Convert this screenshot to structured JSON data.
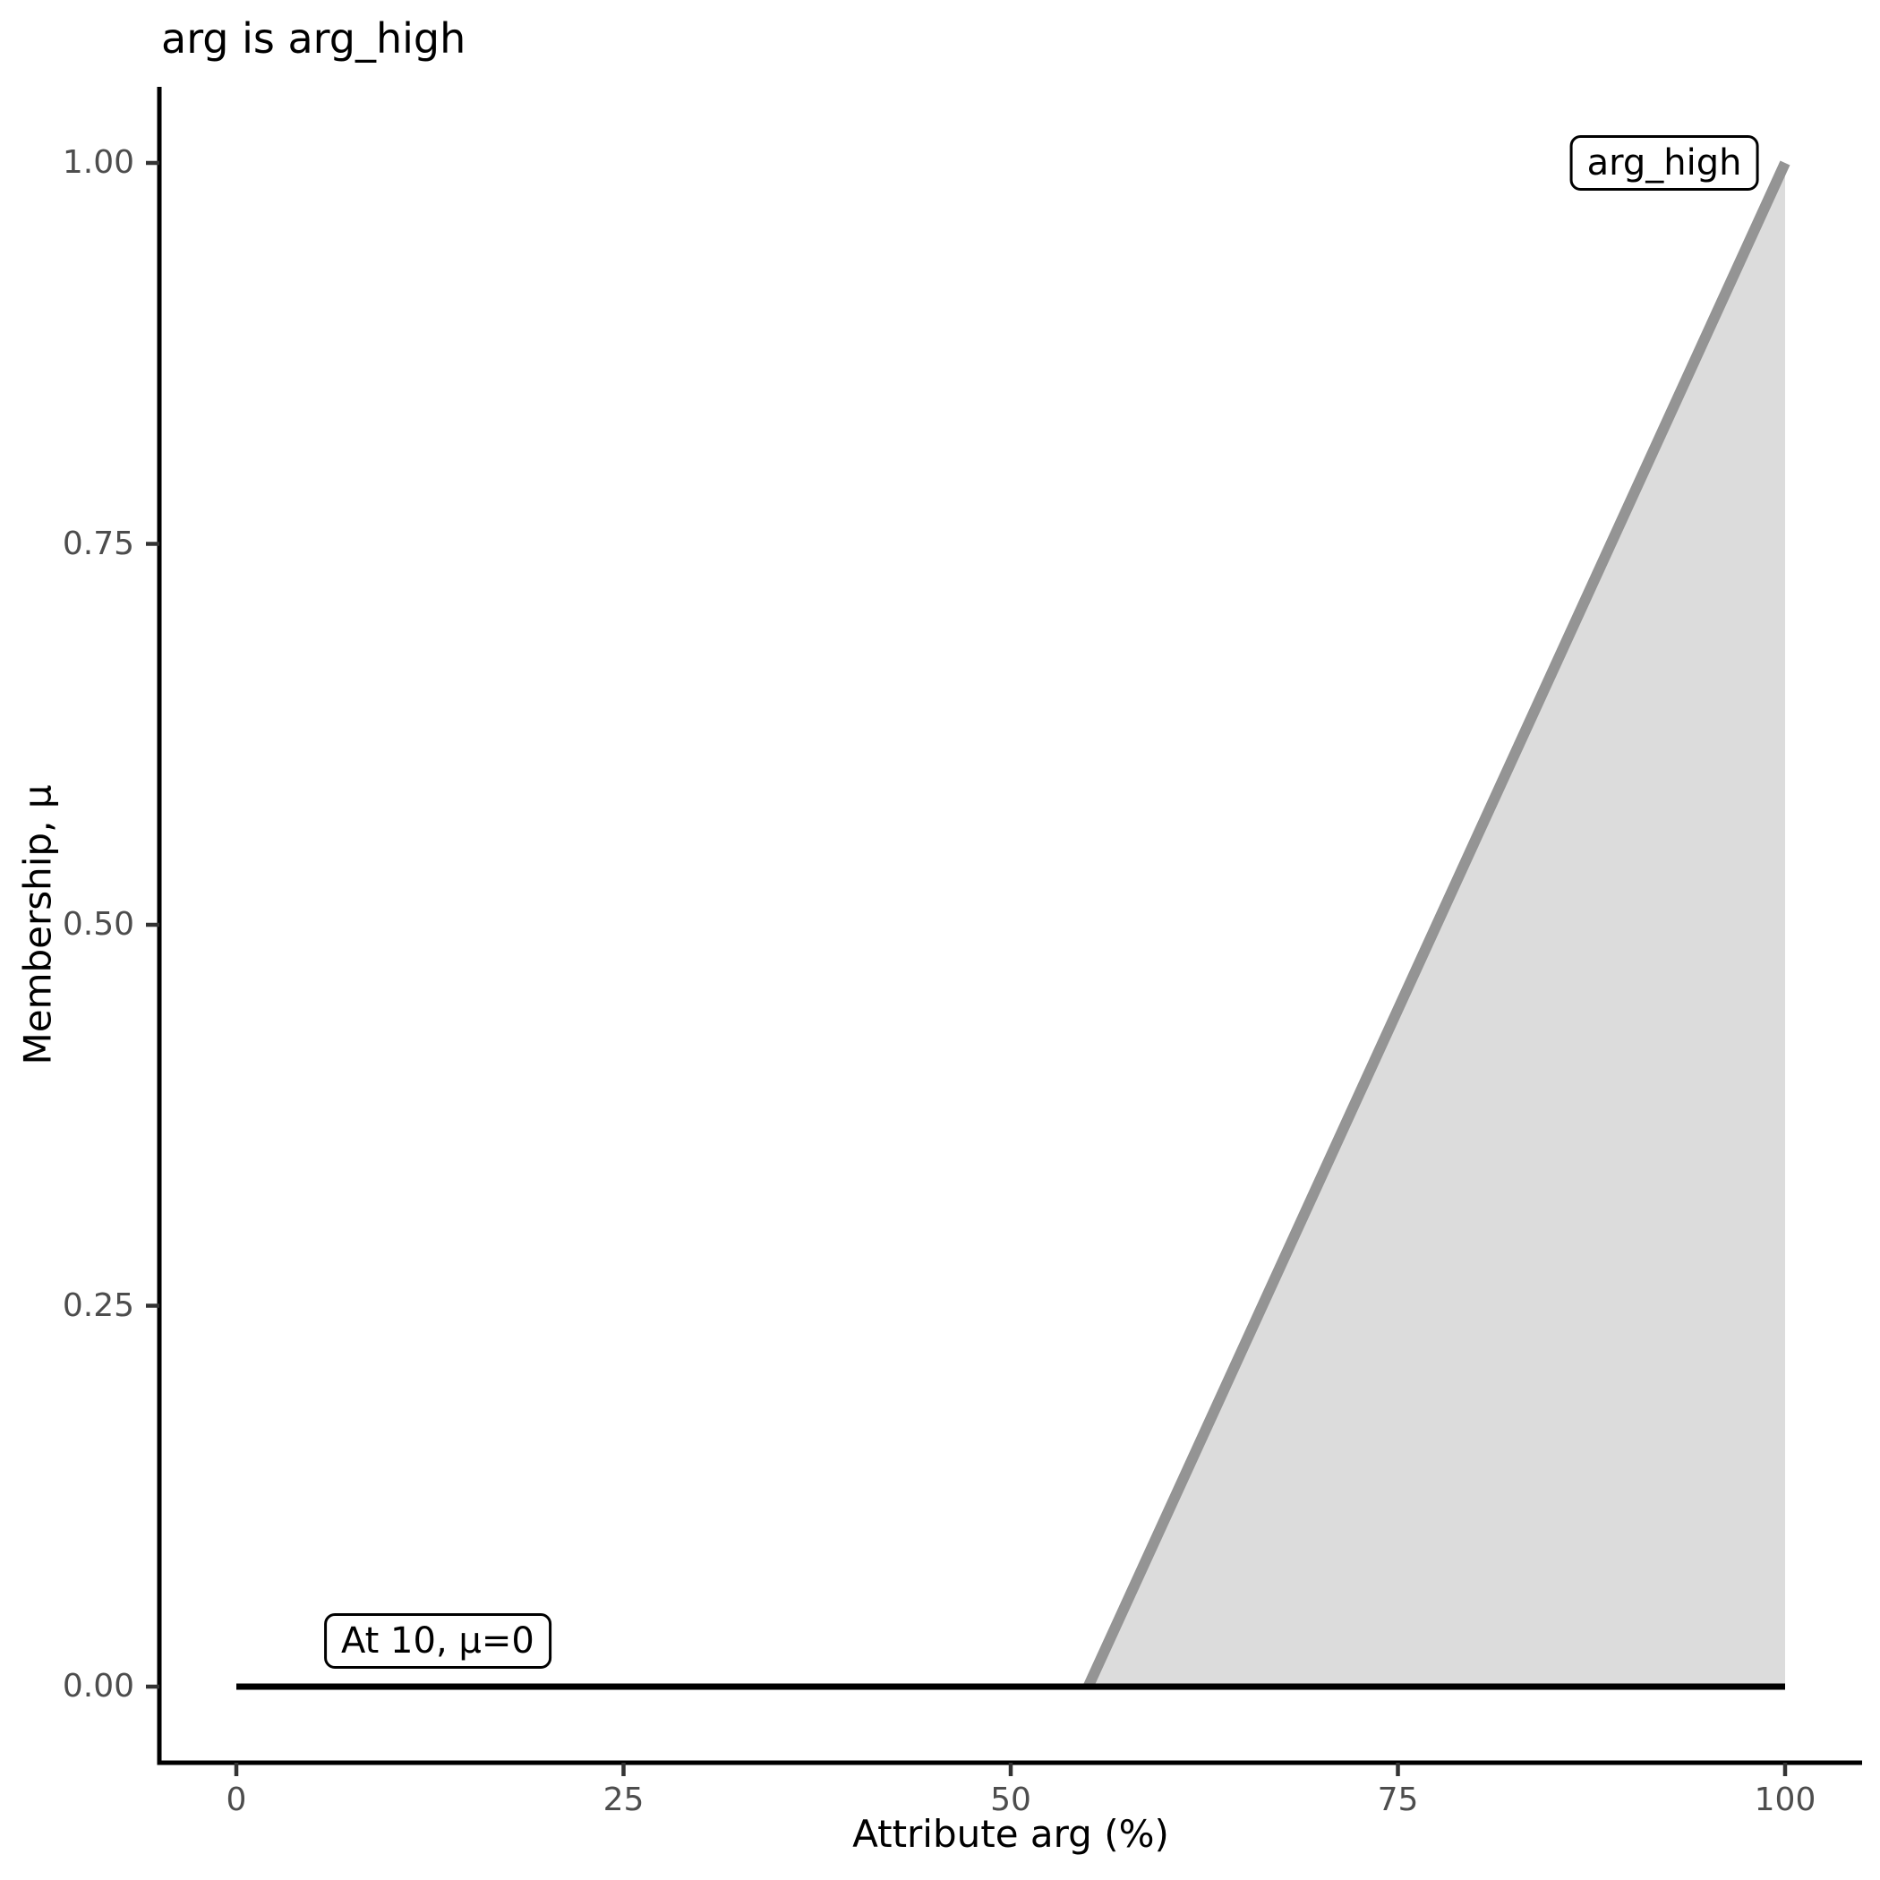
{
  "chart_data": {
    "type": "area",
    "title": "arg is arg_high",
    "xlabel": "Attribute arg (%)",
    "ylabel": "Membership, μ",
    "xlim": [
      0,
      100
    ],
    "ylim": [
      0,
      1
    ],
    "grid": false,
    "legend": "none",
    "x_ticks": {
      "values": [
        0,
        25,
        50,
        75,
        100
      ],
      "labels": [
        "0",
        "25",
        "50",
        "75",
        "100"
      ]
    },
    "y_ticks": {
      "values": [
        0,
        0.25,
        0.5,
        0.75,
        1
      ],
      "labels": [
        "0.00",
        "0.25",
        "0.50",
        "0.75",
        "1.00"
      ]
    },
    "series": [
      {
        "name": "arg_high-membership-ramp",
        "type": "line-with-area",
        "line_color": "#949494",
        "fill_color": "#DCDCDC",
        "stroke_width": 12,
        "points": [
          [
            55,
            0
          ],
          [
            100,
            1
          ]
        ],
        "area_polygon": [
          [
            55,
            0
          ],
          [
            100,
            1
          ],
          [
            100,
            0
          ]
        ]
      },
      {
        "name": "zero-membership-baseline",
        "type": "line",
        "line_color": "#000000",
        "stroke_width": 7,
        "points": [
          [
            0,
            0
          ],
          [
            100,
            0
          ]
        ]
      }
    ],
    "annotations": [
      {
        "text": "arg_high",
        "x": 92.2,
        "y": 1.0
      },
      {
        "text": "At 10, μ=0",
        "x": 13,
        "y": 0.03
      }
    ],
    "colors": {
      "axis_line": "#000000",
      "tick_mark": "#333333",
      "tick_label": "#4D4D4D",
      "title": "#000000"
    }
  }
}
